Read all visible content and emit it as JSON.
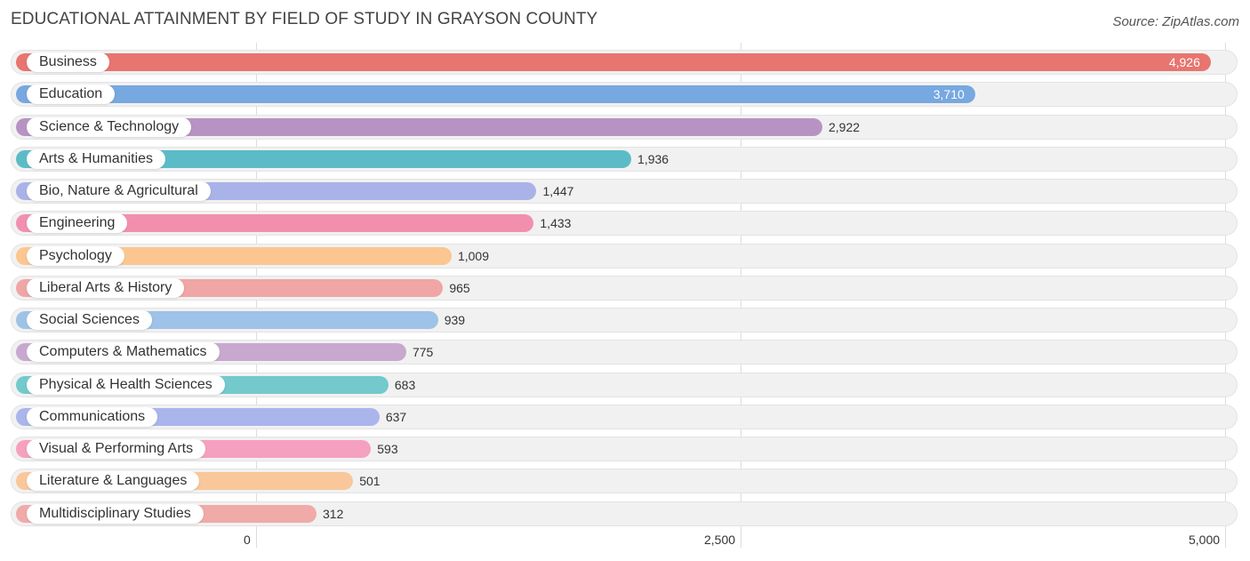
{
  "header": {
    "title": "EDUCATIONAL ATTAINMENT BY FIELD OF STUDY IN GRAYSON COUNTY",
    "source": "Source: ZipAtlas.com"
  },
  "chart_data": {
    "type": "bar",
    "orientation": "horizontal",
    "title": "EDUCATIONAL ATTAINMENT BY FIELD OF STUDY IN GRAYSON COUNTY",
    "xlim": [
      0,
      5000
    ],
    "ticks": [
      {
        "value": 0,
        "label": "0"
      },
      {
        "value": 2500,
        "label": "2,500"
      },
      {
        "value": 5000,
        "label": "5,000"
      }
    ],
    "grid": true,
    "categories": [
      "Business",
      "Education",
      "Science & Technology",
      "Arts & Humanities",
      "Bio, Nature & Agricultural",
      "Engineering",
      "Psychology",
      "Liberal Arts & History",
      "Social Sciences",
      "Computers & Mathematics",
      "Physical & Health Sciences",
      "Communications",
      "Visual & Performing Arts",
      "Literature & Languages",
      "Multidisciplinary Studies"
    ],
    "values": [
      4926,
      3710,
      2922,
      1936,
      1447,
      1433,
      1009,
      965,
      939,
      775,
      683,
      637,
      593,
      501,
      312
    ],
    "value_labels": [
      "4,926",
      "3,710",
      "2,922",
      "1,936",
      "1,447",
      "1,433",
      "1,009",
      "965",
      "939",
      "775",
      "683",
      "637",
      "593",
      "501",
      "312"
    ],
    "colors": [
      "#e8756f",
      "#77a8e0",
      "#b793c4",
      "#5bbcc7",
      "#a9b3e8",
      "#f28faf",
      "#fbc68f",
      "#efa6a4",
      "#9fc2e8",
      "#c8a8cf",
      "#74c9cc",
      "#aab5ec",
      "#f6a0bf",
      "#f9c79a",
      "#f0aaa8"
    ]
  }
}
